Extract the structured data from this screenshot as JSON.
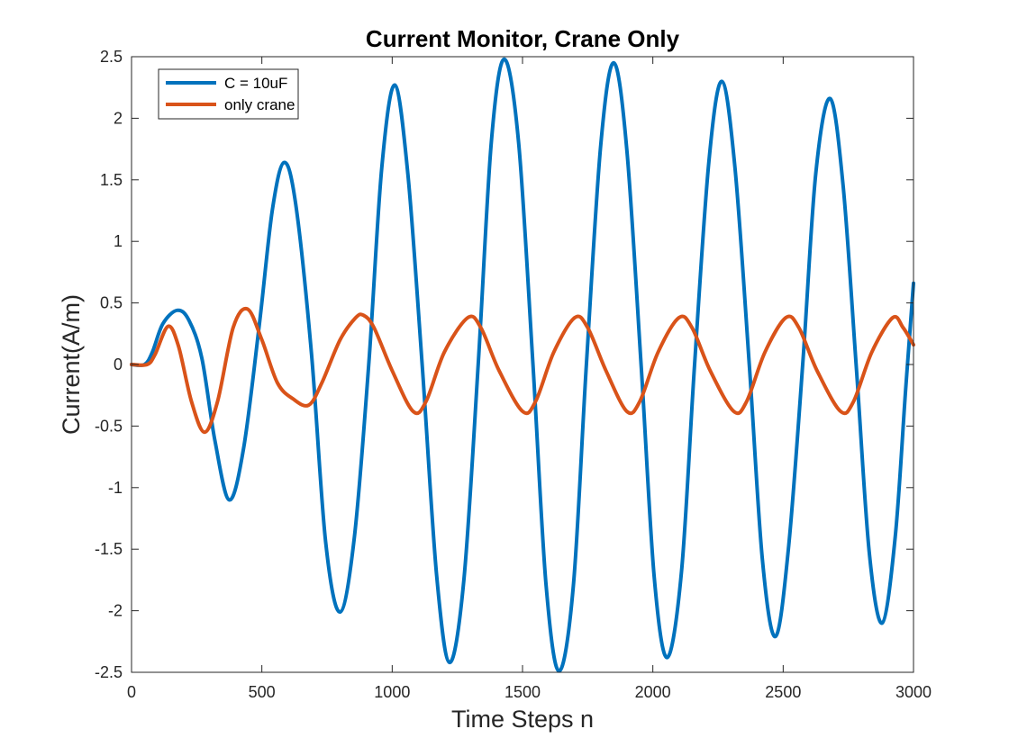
{
  "chart_data": {
    "type": "line",
    "title": "Current Monitor, Crane Only",
    "xlabel": "Time Steps n",
    "ylabel": "Current(A/m)",
    "xlim": [
      0,
      3000
    ],
    "ylim": [
      -2.5,
      2.5
    ],
    "xticks": [
      0,
      500,
      1000,
      1500,
      2000,
      2500,
      3000
    ],
    "xtick_labels": [
      "0",
      "500",
      "1000",
      "1500",
      "2000",
      "2500",
      "3000"
    ],
    "yticks": [
      2.5,
      2,
      1.5,
      1,
      0.5,
      0,
      -0.5,
      -1,
      -1.5,
      -2,
      -2.5
    ],
    "ytick_labels": [
      "2.5",
      "2",
      "1.5",
      "1",
      "0.5",
      "0",
      "-0.5",
      "-1",
      "-1.5",
      "-2",
      "-2.5"
    ],
    "grid": false,
    "legend_position": "top-left",
    "series": [
      {
        "name": "C = 10uF",
        "color": "#0072BD",
        "points": [
          [
            0,
            0
          ],
          [
            50,
            0
          ],
          [
            80,
            0.1
          ],
          [
            120,
            0.33
          ],
          [
            175,
            0.44
          ],
          [
            220,
            0.36
          ],
          [
            270,
            0.05
          ],
          [
            320,
            -0.62
          ],
          [
            375,
            -1.1
          ],
          [
            430,
            -0.68
          ],
          [
            490,
            0.32
          ],
          [
            540,
            1.25
          ],
          [
            585,
            1.64
          ],
          [
            630,
            1.3
          ],
          [
            690,
            0.1
          ],
          [
            745,
            -1.45
          ],
          [
            800,
            -2.01
          ],
          [
            855,
            -1.4
          ],
          [
            910,
            0.0
          ],
          [
            960,
            1.6
          ],
          [
            1010,
            2.27
          ],
          [
            1060,
            1.55
          ],
          [
            1115,
            0.0
          ],
          [
            1170,
            -1.7
          ],
          [
            1220,
            -2.42
          ],
          [
            1275,
            -1.75
          ],
          [
            1330,
            0.0
          ],
          [
            1380,
            1.8
          ],
          [
            1430,
            2.48
          ],
          [
            1485,
            1.8
          ],
          [
            1540,
            0.0
          ],
          [
            1590,
            -1.78
          ],
          [
            1640,
            -2.49
          ],
          [
            1695,
            -1.8
          ],
          [
            1745,
            0.0
          ],
          [
            1800,
            1.78
          ],
          [
            1850,
            2.45
          ],
          [
            1900,
            1.75
          ],
          [
            1955,
            0.0
          ],
          [
            2005,
            -1.72
          ],
          [
            2055,
            -2.38
          ],
          [
            2110,
            -1.68
          ],
          [
            2160,
            0.0
          ],
          [
            2215,
            1.65
          ],
          [
            2265,
            2.3
          ],
          [
            2315,
            1.6
          ],
          [
            2370,
            0.0
          ],
          [
            2420,
            -1.58
          ],
          [
            2470,
            -2.21
          ],
          [
            2520,
            -1.5
          ],
          [
            2575,
            0.0
          ],
          [
            2625,
            1.55
          ],
          [
            2680,
            2.16
          ],
          [
            2730,
            1.45
          ],
          [
            2780,
            0.0
          ],
          [
            2830,
            -1.52
          ],
          [
            2880,
            -2.1
          ],
          [
            2930,
            -1.4
          ],
          [
            2970,
            -0.2
          ],
          [
            3000,
            0.66
          ]
        ]
      },
      {
        "name": "only crane",
        "color": "#D95319",
        "points": [
          [
            0,
            0
          ],
          [
            60,
            0
          ],
          [
            90,
            0.08
          ],
          [
            140,
            0.31
          ],
          [
            180,
            0.15
          ],
          [
            230,
            -0.3
          ],
          [
            280,
            -0.55
          ],
          [
            330,
            -0.3
          ],
          [
            390,
            0.3
          ],
          [
            445,
            0.45
          ],
          [
            500,
            0.2
          ],
          [
            560,
            -0.15
          ],
          [
            620,
            -0.28
          ],
          [
            680,
            -0.33
          ],
          [
            730,
            -0.15
          ],
          [
            800,
            0.2
          ],
          [
            860,
            0.38
          ],
          [
            890,
            0.4
          ],
          [
            930,
            0.3
          ],
          [
            1000,
            -0.05
          ],
          [
            1080,
            -0.38
          ],
          [
            1130,
            -0.3
          ],
          [
            1200,
            0.1
          ],
          [
            1290,
            0.38
          ],
          [
            1340,
            0.3
          ],
          [
            1410,
            -0.05
          ],
          [
            1500,
            -0.38
          ],
          [
            1550,
            -0.3
          ],
          [
            1620,
            0.1
          ],
          [
            1700,
            0.38
          ],
          [
            1750,
            0.3
          ],
          [
            1820,
            -0.05
          ],
          [
            1900,
            -0.38
          ],
          [
            1950,
            -0.3
          ],
          [
            2020,
            0.1
          ],
          [
            2100,
            0.38
          ],
          [
            2150,
            0.3
          ],
          [
            2220,
            -0.05
          ],
          [
            2310,
            -0.38
          ],
          [
            2360,
            -0.3
          ],
          [
            2430,
            0.1
          ],
          [
            2510,
            0.38
          ],
          [
            2560,
            0.3
          ],
          [
            2630,
            -0.05
          ],
          [
            2720,
            -0.38
          ],
          [
            2770,
            -0.3
          ],
          [
            2840,
            0.1
          ],
          [
            2920,
            0.38
          ],
          [
            2960,
            0.3
          ],
          [
            3000,
            0.16
          ]
        ]
      }
    ]
  }
}
